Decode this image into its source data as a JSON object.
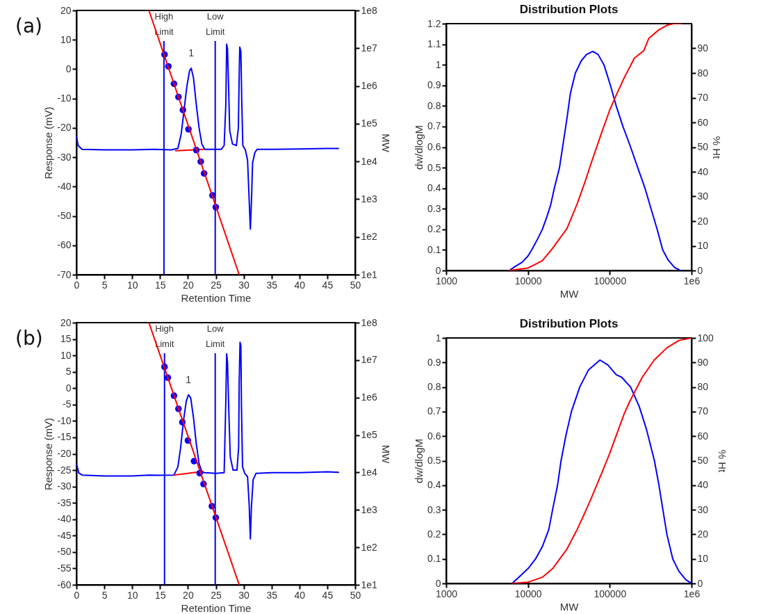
{
  "chart_data": [
    {
      "type": "line",
      "xlabel": "Retention Time",
      "ylabel": "Response (mV)",
      "y2label": "MW",
      "xlim": [
        0,
        50
      ],
      "xticks": [
        0,
        5,
        10,
        15,
        20,
        25,
        30,
        35,
        40,
        45,
        50
      ],
      "ylim": [
        -70,
        20
      ],
      "yticks": [
        -70,
        -60,
        -50,
        -40,
        -30,
        -20,
        -10,
        0,
        10,
        20
      ],
      "y2lim": [
        10,
        100000000
      ],
      "y2ticks": [
        {
          "value": 10,
          "label": "1e1"
        },
        {
          "value": 100,
          "label": "1e2"
        },
        {
          "value": 1000,
          "label": "1e3"
        },
        {
          "value": 10000,
          "label": "1e4"
        },
        {
          "value": 100000,
          "label": "1e5"
        },
        {
          "value": 1000000,
          "label": "1e6"
        },
        {
          "value": 10000000,
          "label": "1e7"
        },
        {
          "value": 100000000,
          "label": "1e8"
        }
      ],
      "log": "y2",
      "series": [
        {
          "type": "line",
          "color": "#0000ff",
          "x": [
            0,
            0.3,
            1,
            5,
            10,
            14,
            17,
            18.2,
            18.8,
            19.3,
            19.8,
            20.3,
            20.6,
            21,
            21.5,
            22,
            22.5,
            23,
            25,
            26,
            26.5,
            26.8,
            26.95,
            27.1,
            27.25,
            27.5,
            28,
            28.7,
            29.05,
            29.2,
            29.3,
            29.5,
            29.65,
            29.85,
            30.3,
            30.7,
            31,
            31.2,
            31.4,
            31.6,
            32,
            32.4,
            35,
            40,
            45,
            47
          ],
          "values": [
            -23,
            -26,
            -27.3,
            -27.5,
            -27.5,
            -27.3,
            -27.5,
            -27,
            -22,
            -14,
            -6,
            -0.5,
            0.3,
            -3,
            -12,
            -20,
            -25.5,
            -27.3,
            -27.3,
            -27.3,
            -26,
            -12,
            8.5,
            7,
            -3,
            -21,
            -25.5,
            -26,
            -20,
            -2,
            7.5,
            6,
            -10,
            -26,
            -27.5,
            -31,
            -45,
            -54.5,
            -45,
            -32,
            -28.5,
            -27.3,
            -27.3,
            -27.2,
            -27,
            -27
          ]
        },
        {
          "type": "line",
          "color": "#ff0000",
          "x": [
            17.8,
            22.8
          ],
          "values": [
            -27.8,
            -27.3
          ]
        },
        {
          "type": "scatter",
          "axis": "y2",
          "marker": "circle",
          "color": "#0000ff",
          "x": [
            15.8,
            16.5,
            17.5,
            18.3,
            19.1,
            20.1,
            21.5,
            22.3,
            22.9,
            24.4,
            25
          ],
          "values": [
            6800000,
            3300000,
            1140000,
            510000,
            230000,
            71000,
            20000,
            9900,
            4800,
            1260,
            615
          ]
        },
        {
          "type": "line",
          "axis": "y2",
          "color": "#ff0000",
          "x": [
            13,
            29.2
          ],
          "values": [
            100000000,
            10
          ]
        }
      ],
      "ref_lines": [
        {
          "axis": "x",
          "value": 15.7,
          "label": "High Limit",
          "color": "#0000ff"
        },
        {
          "axis": "x",
          "value": 24.9,
          "label": "Low Limit",
          "color": "#0000ff"
        }
      ],
      "annotations": [
        "(a)",
        {
          "text": "1",
          "x": 20.6,
          "y": 0.3
        }
      ]
    },
    {
      "type": "line",
      "title": "Distribution Plots",
      "xlabel": "MW",
      "ylabel": "dw/dlogM",
      "y2label": "% Ht",
      "log": "x",
      "xlim": [
        1000,
        1000000
      ],
      "xticks": [
        1000,
        10000,
        100000,
        {
          "value": 1000000,
          "label": "1e6"
        }
      ],
      "ylim": [
        0,
        1.2
      ],
      "yticks": [
        0,
        0.1,
        0.2,
        0.3,
        0.4,
        0.5,
        0.6,
        0.7,
        0.8,
        0.9,
        1,
        1.1,
        1.2
      ],
      "y2lim": [
        0,
        100
      ],
      "y2ticks": [
        0,
        10,
        20,
        30,
        40,
        50,
        60,
        70,
        80,
        90
      ],
      "series": [
        {
          "color": "#0000ff",
          "x": [
            5900,
            7000,
            8500,
            10000,
            11100,
            13000,
            15000,
            17000,
            19000,
            21000,
            24300,
            27000,
            30000,
            33000,
            38000,
            45000,
            52000,
            62000,
            72000,
            85000,
            102000,
            120000,
            145000,
            180000,
            220000,
            270000,
            320000,
            380000,
            445000,
            520000,
            620000,
            733000
          ],
          "values": [
            0,
            0.02,
            0.04,
            0.07,
            0.1,
            0.15,
            0.2,
            0.26,
            0.32,
            0.4,
            0.5,
            0.62,
            0.74,
            0.86,
            0.96,
            1.02,
            1.05,
            1.065,
            1.05,
            1,
            0.9,
            0.8,
            0.7,
            0.6,
            0.5,
            0.4,
            0.3,
            0.2,
            0.1,
            0.05,
            0.015,
            0
          ]
        },
        {
          "axis": "y2",
          "color": "#ff0000",
          "x": [
            5900,
            10000,
            15000,
            20000,
            30000,
            40000,
            50000,
            60000,
            80000,
            100000,
            120000,
            150000,
            200000,
            260000,
            300000,
            400000,
            500000,
            600000,
            750000
          ],
          "values": [
            0,
            1,
            4,
            9,
            17,
            27,
            36,
            44,
            56,
            65,
            71,
            78,
            86,
            89,
            94,
            97.5,
            99.3,
            100,
            100
          ]
        }
      ]
    },
    {
      "type": "line",
      "xlabel": "Retention Time",
      "ylabel": "Response (mV)",
      "y2label": "MW",
      "xlim": [
        0,
        50
      ],
      "xticks": [
        0,
        5,
        10,
        15,
        20,
        25,
        30,
        35,
        40,
        45,
        50
      ],
      "ylim": [
        -60,
        20
      ],
      "yticks": [
        -60,
        -55,
        -50,
        -45,
        -40,
        -35,
        -30,
        -25,
        -20,
        -15,
        -10,
        -5,
        0,
        5,
        10,
        15,
        20
      ],
      "y2lim": [
        10,
        100000000
      ],
      "y2ticks": [
        {
          "value": 10,
          "label": "1e1"
        },
        {
          "value": 100,
          "label": "1e2"
        },
        {
          "value": 1000,
          "label": "1e3"
        },
        {
          "value": 10000,
          "label": "1e4"
        },
        {
          "value": 100000,
          "label": "1e5"
        },
        {
          "value": 1000000,
          "label": "1e6"
        },
        {
          "value": 10000000,
          "label": "1e7"
        },
        {
          "value": 100000000,
          "label": "1e8"
        }
      ],
      "log": "y2",
      "series": [
        {
          "type": "line",
          "color": "#0000ff",
          "x": [
            0,
            0.4,
            1,
            5,
            10,
            13,
            15,
            17.5,
            18.2,
            18.7,
            19.2,
            19.7,
            20.1,
            20.5,
            21,
            21.5,
            22,
            22.5,
            23,
            25,
            26.5,
            26.8,
            26.95,
            27.1,
            27.3,
            27.6,
            28.1,
            28.8,
            29.1,
            29.2,
            29.35,
            29.5,
            29.6,
            29.8,
            30.2,
            30.7,
            31,
            31.2,
            31.4,
            31.7,
            32.2,
            35,
            40,
            45,
            47
          ],
          "values": [
            -23,
            -25.8,
            -26.5,
            -26.8,
            -26.8,
            -26.5,
            -26.6,
            -26.5,
            -24,
            -18,
            -10,
            -4,
            -2,
            -3,
            -9,
            -17,
            -23,
            -25.6,
            -25.8,
            -26,
            -25.8,
            -4,
            10.5,
            8,
            -5,
            -21,
            -25,
            -25,
            -18,
            2,
            14,
            13,
            -5,
            -24,
            -26,
            -27,
            -36,
            -46,
            -36,
            -28,
            -26,
            -25.8,
            -25.8,
            -25.5,
            -25.7
          ]
        },
        {
          "type": "line",
          "color": "#ff0000",
          "x": [
            17.6,
            22.7
          ],
          "values": [
            -26.5,
            -25.4
          ]
        },
        {
          "type": "scatter",
          "axis": "y2",
          "marker": "circle",
          "color": "#0000ff",
          "x": [
            15.8,
            16.4,
            17.5,
            18.3,
            19,
            20,
            21.1,
            22.1,
            22.8,
            24.3,
            25
          ],
          "values": [
            6600000,
            3400000,
            1120000,
            500000,
            220000,
            71000,
            20000,
            9600,
            4900,
            1260,
            620
          ]
        },
        {
          "type": "line",
          "axis": "y2",
          "color": "#ff0000",
          "x": [
            13,
            29.2
          ],
          "values": [
            100000000,
            10
          ]
        }
      ],
      "ref_lines": [
        {
          "axis": "x",
          "value": 15.8,
          "label": "High Limit",
          "color": "#0000ff"
        },
        {
          "axis": "x",
          "value": 24.9,
          "label": "Low Limit",
          "color": "#0000ff"
        }
      ],
      "annotations": [
        "(b)",
        {
          "text": "1",
          "x": 20.1,
          "y": -2
        }
      ]
    },
    {
      "type": "line",
      "title": "Distribution Plots",
      "xlabel": "MW",
      "ylabel": "dw/dlogM",
      "y2label": "% Ht",
      "log": "x",
      "xlim": [
        1000,
        1000000
      ],
      "xticks": [
        1000,
        10000,
        100000,
        {
          "value": 1000000,
          "label": "1e6"
        }
      ],
      "ylim": [
        0,
        1
      ],
      "yticks": [
        0,
        0.1,
        0.2,
        0.3,
        0.4,
        0.5,
        0.6,
        0.7,
        0.8,
        0.9,
        1
      ],
      "y2lim": [
        0,
        100
      ],
      "y2ticks": [
        0,
        10,
        20,
        30,
        40,
        50,
        60,
        70,
        80,
        90,
        100
      ],
      "series": [
        {
          "color": "#0000ff",
          "x": [
            6400,
            8000,
            10000,
            12400,
            15000,
            18000,
            20000,
            23000,
            25400,
            29000,
            34000,
            43000,
            55000,
            76000,
            95000,
            120000,
            140000,
            180000,
            230000,
            280000,
            352000,
            400000,
            447000,
            500000,
            590000,
            700000,
            850000,
            1000000
          ],
          "values": [
            0,
            0.03,
            0.06,
            0.1,
            0.15,
            0.22,
            0.3,
            0.4,
            0.5,
            0.6,
            0.7,
            0.8,
            0.87,
            0.91,
            0.89,
            0.85,
            0.84,
            0.8,
            0.72,
            0.63,
            0.5,
            0.4,
            0.3,
            0.2,
            0.1,
            0.05,
            0.015,
            0
          ]
        },
        {
          "axis": "y2",
          "color": "#ff0000",
          "x": [
            6400,
            10000,
            15000,
            20000,
            30000,
            40000,
            50000,
            60000,
            80000,
            100000,
            150000,
            175000,
            250000,
            350000,
            500000,
            700000,
            1000000
          ],
          "values": [
            0,
            0.5,
            2.5,
            6,
            14,
            22,
            29,
            35,
            45,
            53,
            69,
            74,
            84,
            91,
            96,
            99,
            100
          ]
        }
      ]
    }
  ]
}
